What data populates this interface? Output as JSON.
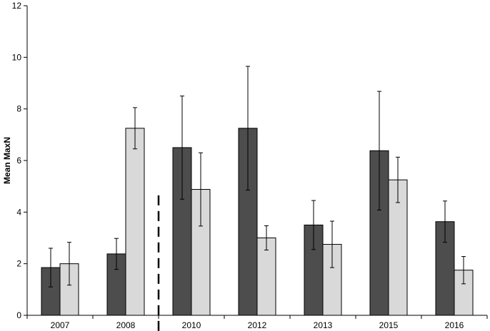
{
  "chart_data": {
    "type": "bar",
    "title": "",
    "xlabel": "",
    "ylabel": "Mean MaxN",
    "ylim": [
      0,
      12
    ],
    "yticks": [
      0,
      2,
      4,
      6,
      8,
      10,
      12
    ],
    "grid": false,
    "legend": "none",
    "categories": [
      "2007",
      "2008",
      "2010",
      "2012",
      "2013",
      "2015",
      "2016"
    ],
    "divider_between": [
      "2008",
      "2010"
    ],
    "series": [
      {
        "color": "#4d4d4d",
        "values": [
          1.85,
          2.38,
          6.5,
          7.25,
          3.5,
          6.38,
          3.63
        ],
        "error": [
          0.75,
          0.6,
          2.0,
          2.4,
          0.95,
          2.3,
          0.8
        ]
      },
      {
        "color": "#d9d9d9",
        "values": [
          2.0,
          7.25,
          4.88,
          3.0,
          2.75,
          5.25,
          1.75
        ],
        "error": [
          0.83,
          0.8,
          1.42,
          0.47,
          0.9,
          0.88,
          0.53
        ]
      }
    ]
  }
}
